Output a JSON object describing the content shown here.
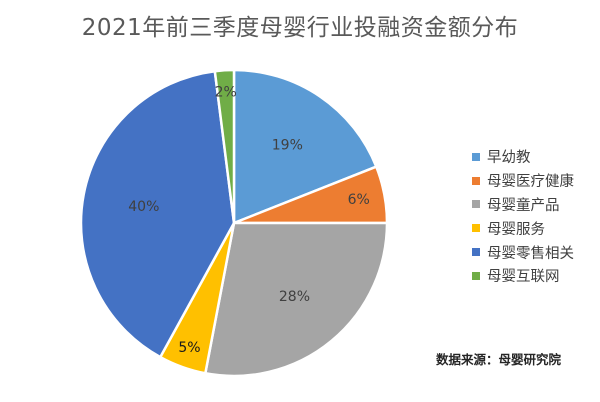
{
  "chart_data": {
    "type": "pie",
    "title": "2021年前三季度母婴行业投融资金额分布",
    "categories": [
      "早幼教",
      "母婴医疗健康",
      "母婴童产品",
      "母婴服务",
      "母婴零售相关",
      "母婴互联网"
    ],
    "values": [
      19,
      6,
      28,
      5,
      40,
      2
    ],
    "value_labels": [
      "19%",
      "6%",
      "28%",
      "5%",
      "40%",
      "2%"
    ],
    "colors": [
      "#5B9BD5",
      "#ED7D31",
      "#A5A5A5",
      "#FFC000",
      "#4472C4",
      "#70AD47"
    ],
    "start_angle_deg": 0,
    "direction": "clockwise",
    "legend_position": "right"
  },
  "source_note": "数据来源：母婴研究院"
}
